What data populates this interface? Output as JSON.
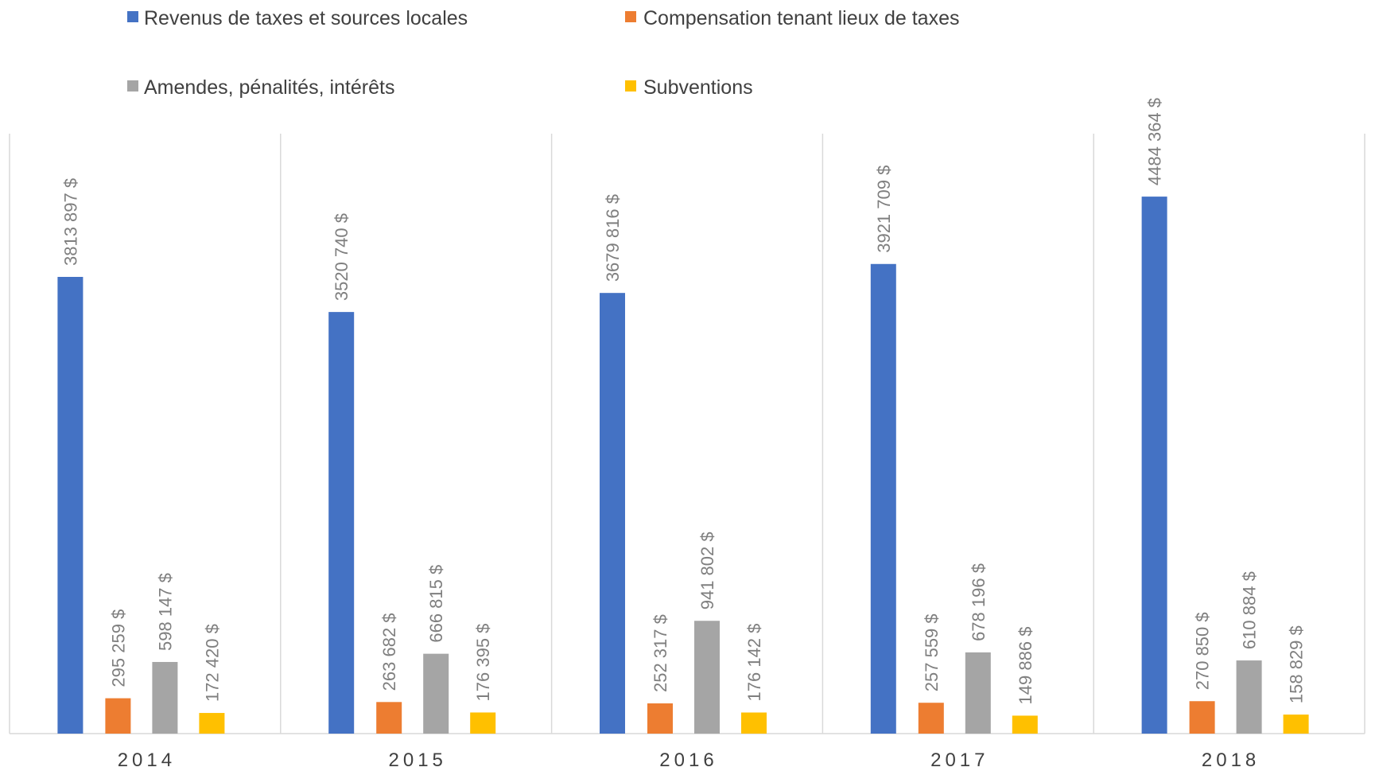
{
  "colors": {
    "revenus": "#4472C4",
    "compensation": "#ED7D31",
    "amendes": "#A5A5A5",
    "subventions": "#FFC000",
    "divider": "#d9d9d9",
    "label": "#7f7f7f",
    "text": "#404040"
  },
  "chart_data": {
    "type": "bar",
    "title": "",
    "xlabel": "",
    "ylabel": "",
    "legend_placement": "top",
    "grid": false,
    "ylim": [
      0,
      4900000
    ],
    "categories": [
      "2014",
      "2015",
      "2016",
      "2017",
      "2018"
    ],
    "series": [
      {
        "name": "Revenus de taxes et sources locales",
        "color_key": "revenus",
        "values": [
          3813897,
          3520740,
          3679816,
          3921709,
          4484364
        ],
        "labels": [
          "3813 897 $",
          "3520 740 $",
          "3679 816 $",
          "3921 709 $",
          "4484 364 $"
        ]
      },
      {
        "name": "Compensation tenant lieux de taxes",
        "color_key": "compensation",
        "values": [
          295259,
          263682,
          252317,
          257559,
          270850
        ],
        "labels": [
          "295 259 $",
          "263 682 $",
          "252 317 $",
          "257 559 $",
          "270 850 $"
        ]
      },
      {
        "name": "Amendes, pénalités, intérêts",
        "color_key": "amendes",
        "values": [
          598147,
          666815,
          941802,
          678196,
          610884
        ],
        "labels": [
          "598 147 $",
          "666 815 $",
          "941 802 $",
          "678 196 $",
          "610 884 $"
        ]
      },
      {
        "name": "Subventions",
        "color_key": "subventions",
        "values": [
          172420,
          176395,
          176142,
          149886,
          158829
        ],
        "labels": [
          "172 420 $",
          "176 395 $",
          "176 142 $",
          "149 886 $",
          "158 829 $"
        ]
      }
    ]
  }
}
